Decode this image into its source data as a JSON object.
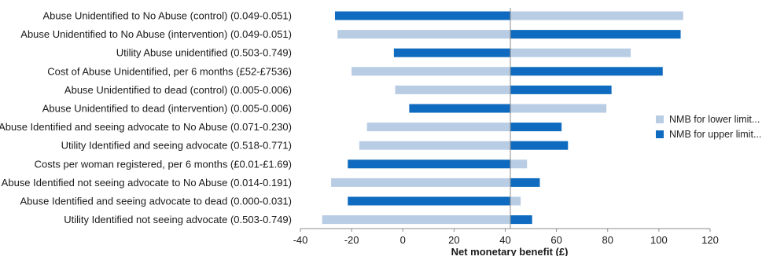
{
  "chart_data": {
    "type": "bar",
    "orientation": "horizontal",
    "variant": "tornado",
    "title": "",
    "xlabel": "Net monetary benefit (£)",
    "ylabel": "",
    "xlim": [
      -40,
      120
    ],
    "xticks": [
      -40,
      -20,
      0,
      20,
      40,
      60,
      80,
      100,
      120
    ],
    "baseline": 42,
    "grid": false,
    "legend_position": "right",
    "categories": [
      "Abuse Unidentified to No Abuse (control) (0.049-0.051)",
      "Abuse Unidentified to No Abuse (intervention) (0.049-0.051)",
      "Utility Abuse unidentified (0.503-0.749)",
      "Cost of Abuse Unidentified, per 6 months (£52-£7536)",
      "Abuse Unidentified to dead (control) (0.005-0.006)",
      "Abuse Unidentified to dead (intervention) (0.005-0.006)",
      "Abuse Identified and seeing advocate to No Abuse (0.071-0.230)",
      "Utility Identified and seeing advocate (0.518-0.771)",
      "Costs per woman registered, per 6 months (£0.01-£1.69)",
      "Abuse Identified not seeing advocate to No Abuse (0.014-0.191)",
      "Abuse Identified and seeing advocate to dead (0.000-0.031)",
      "Utility Identified not seeing advocate (0.503-0.749)"
    ],
    "series": [
      {
        "name": "NMB for lower limit...",
        "color": "#b8cce4",
        "values": [
          109.5,
          -25.5,
          89,
          -20,
          -3,
          79.5,
          -14,
          -17,
          48.5,
          -28,
          46,
          -31.5
        ]
      },
      {
        "name": "NMB for upper limit...",
        "color": "#0f6bbf",
        "values": [
          -26.5,
          108.5,
          -3.5,
          101.5,
          81.5,
          2.5,
          62,
          64.5,
          -21.5,
          53.5,
          -21.5,
          50.5
        ]
      }
    ]
  }
}
